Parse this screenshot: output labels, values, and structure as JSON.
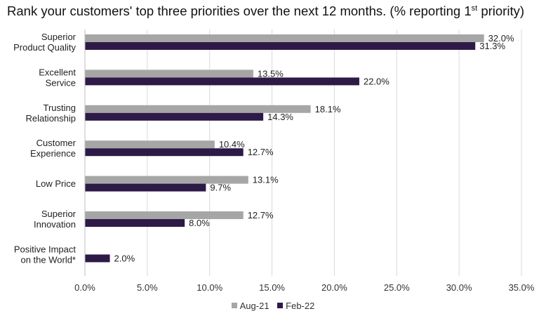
{
  "chart_data": {
    "type": "bar",
    "orientation": "horizontal",
    "title_main": "Rank your customers' top three priorities over the next 12 months. (% reporting 1",
    "title_sup": "st",
    "title_end": " priority)",
    "categories": [
      [
        "Superior",
        "Product Quality"
      ],
      [
        "Excellent",
        "Service"
      ],
      [
        "Trusting",
        "Relationship"
      ],
      [
        "Customer",
        "Experience"
      ],
      [
        "Low Price"
      ],
      [
        "Superior",
        "Innovation"
      ],
      [
        "Positive Impact",
        "on the World*"
      ]
    ],
    "series": [
      {
        "name": "Aug-21",
        "color": "#a6a6a6",
        "values": [
          32.0,
          13.5,
          18.1,
          10.4,
          13.1,
          12.7,
          null
        ]
      },
      {
        "name": "Feb-22",
        "color": "#2e1a47",
        "values": [
          31.3,
          22.0,
          14.3,
          12.7,
          9.7,
          8.0,
          2.0
        ]
      }
    ],
    "xlim": [
      0,
      35
    ],
    "xticks": [
      "0.0%",
      "5.0%",
      "10.0%",
      "15.0%",
      "20.0%",
      "25.0%",
      "30.0%",
      "35.0%"
    ],
    "value_suffix": "%",
    "grid": true,
    "legend_position": "bottom"
  }
}
